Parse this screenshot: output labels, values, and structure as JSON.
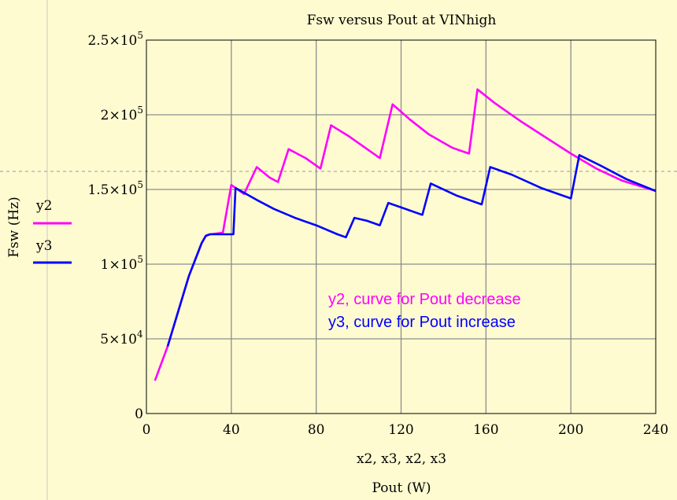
{
  "chart_data": {
    "type": "line",
    "title": "Fsw versus Pout at VINhigh",
    "xlabel_vars": "x2, x3, x2, x3",
    "xlabel": "Pout (W)",
    "ylabel": "Fsw (Hz)",
    "xlim": [
      0,
      240
    ],
    "ylim": [
      0,
      250000
    ],
    "grid": true,
    "legend_position": "left",
    "x_ticks": [
      "0",
      "40",
      "80",
      "120",
      "160",
      "200",
      "240"
    ],
    "y_ticks": [
      {
        "base": "0",
        "exp": ""
      },
      {
        "base": "5×10",
        "exp": "4"
      },
      {
        "base": "1×10",
        "exp": "5"
      },
      {
        "base": "1.5×10",
        "exp": "5"
      },
      {
        "base": "2×10",
        "exp": "5"
      },
      {
        "base": "2.5×10",
        "exp": "5"
      }
    ],
    "annotations": [
      {
        "text": "y2, curve for Pout decrease",
        "color": "#ff00ff"
      },
      {
        "text": "y3, curve for Pout increase",
        "color": "#0000ff"
      }
    ],
    "series": [
      {
        "name": "y2",
        "color": "#ff00ff",
        "x": [
          4,
          10,
          20,
          26,
          28,
          30,
          36,
          40,
          46,
          52,
          58,
          62,
          67,
          75,
          82,
          87,
          95,
          103,
          110,
          116,
          124,
          133,
          144,
          152,
          156,
          164,
          176,
          188,
          200,
          212,
          224,
          240
        ],
        "y": [
          22000,
          45000,
          92000,
          114000,
          119000,
          120000,
          121000,
          153000,
          147000,
          165000,
          158000,
          155000,
          177000,
          171000,
          164000,
          193000,
          186000,
          178000,
          171000,
          207000,
          197000,
          187000,
          178000,
          174000,
          217000,
          208000,
          196000,
          185000,
          174000,
          164000,
          156000,
          149000
        ]
      },
      {
        "name": "y3",
        "color": "#0000ff",
        "x": [
          10,
          20,
          26,
          28,
          30,
          36,
          41,
          42,
          52,
          60,
          70,
          80,
          90,
          94,
          98,
          104,
          110,
          114,
          124,
          130,
          134,
          146,
          158,
          162,
          172,
          186,
          200,
          204,
          214,
          226,
          240
        ],
        "y": [
          45000,
          92000,
          114000,
          119000,
          120000,
          120000,
          120000,
          151000,
          143000,
          137000,
          131000,
          126000,
          120000,
          118000,
          131000,
          129000,
          126000,
          141000,
          136000,
          133000,
          154000,
          146000,
          140000,
          165000,
          160000,
          151000,
          144000,
          173000,
          166000,
          157000,
          149000
        ]
      }
    ]
  }
}
